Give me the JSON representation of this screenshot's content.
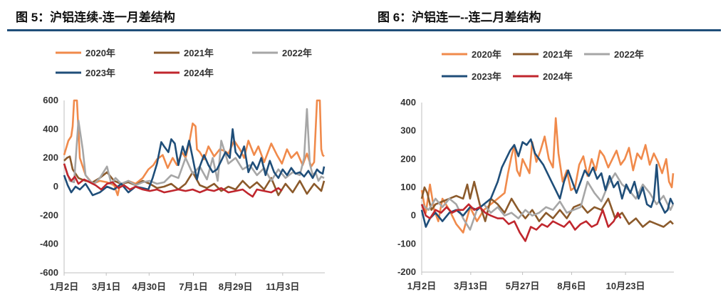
{
  "titles": {
    "fig5": "图 5：沪铝连续-连一月差结构",
    "fig6": "图 6：沪铝连一--连二月差结构"
  },
  "chart_data": [
    {
      "type": "line",
      "title": "图 5：沪铝连续-连一月差结构",
      "ylim": [
        -600,
        600
      ],
      "yticks": [
        600,
        400,
        200,
        0,
        -200,
        -400,
        -600
      ],
      "xticks": [
        "1月2日",
        "3月1日",
        "4月30日",
        "7月1日",
        "8月29日",
        "11月3日"
      ],
      "xtick_days": [
        0,
        59,
        119,
        181,
        240,
        306
      ],
      "xlim_days": [
        0,
        365
      ],
      "series": [
        {
          "name": "2020年",
          "color": "#f08a4b",
          "x": [
            0,
            6,
            10,
            12,
            14,
            18,
            22,
            30,
            40,
            50,
            60,
            70,
            75,
            78,
            82,
            90,
            100,
            110,
            118,
            125,
            130,
            138,
            145,
            152,
            158,
            165,
            170,
            175,
            180,
            184,
            186,
            190,
            196,
            202,
            210,
            218,
            224,
            230,
            238,
            246,
            252,
            258,
            266,
            272,
            280,
            290,
            298,
            305,
            312,
            318,
            326,
            334,
            340,
            346,
            350,
            354,
            358,
            360,
            362,
            364
          ],
          "values": [
            220,
            320,
            350,
            420,
            600,
            600,
            200,
            80,
            20,
            40,
            30,
            10,
            -60,
            10,
            20,
            40,
            20,
            60,
            120,
            150,
            190,
            220,
            130,
            200,
            150,
            240,
            200,
            300,
            440,
            420,
            260,
            240,
            190,
            280,
            210,
            260,
            250,
            230,
            320,
            260,
            200,
            320,
            220,
            280,
            170,
            300,
            220,
            160,
            260,
            200,
            240,
            150,
            230,
            140,
            170,
            600,
            600,
            260,
            220,
            210
          ]
        },
        {
          "name": "2021年",
          "color": "#8b5a2b",
          "x": [
            0,
            4,
            8,
            12,
            20,
            30,
            40,
            50,
            60,
            70,
            80,
            90,
            100,
            110,
            120,
            130,
            140,
            150,
            160,
            170,
            180,
            190,
            200,
            210,
            220,
            230,
            240,
            250,
            260,
            270,
            280,
            290,
            300,
            310,
            320,
            330,
            340,
            350,
            360,
            364
          ],
          "values": [
            180,
            200,
            210,
            120,
            60,
            40,
            30,
            60,
            100,
            40,
            20,
            30,
            10,
            40,
            20,
            -10,
            0,
            20,
            -20,
            20,
            100,
            10,
            -10,
            20,
            -30,
            0,
            -20,
            40,
            -10,
            30,
            -20,
            60,
            -60,
            20,
            -40,
            40,
            -50,
            20,
            -30,
            40
          ]
        },
        {
          "name": "2022年",
          "color": "#a6a6a6",
          "x": [
            0,
            8,
            14,
            20,
            26,
            30,
            36,
            42,
            50,
            60,
            66,
            72,
            80,
            90,
            100,
            110,
            120,
            130,
            140,
            150,
            160,
            170,
            180,
            190,
            200,
            208,
            215,
            220,
            230,
            240,
            250,
            260,
            270,
            280,
            290,
            300,
            310,
            320,
            330,
            336,
            340,
            344,
            348,
            352,
            356,
            360,
            364
          ],
          "values": [
            160,
            40,
            30,
            460,
            260,
            80,
            40,
            20,
            60,
            140,
            20,
            60,
            20,
            40,
            10,
            30,
            40,
            20,
            30,
            80,
            60,
            200,
            90,
            140,
            50,
            200,
            40,
            320,
            160,
            200,
            120,
            150,
            80,
            130,
            40,
            120,
            60,
            100,
            80,
            200,
            540,
            160,
            80,
            100,
            40,
            70,
            60
          ]
        },
        {
          "name": "2023年",
          "color": "#1f4e79",
          "x": [
            0,
            5,
            10,
            16,
            22,
            30,
            40,
            50,
            60,
            70,
            80,
            90,
            100,
            110,
            118,
            124,
            130,
            136,
            140,
            146,
            150,
            155,
            160,
            166,
            170,
            175,
            180,
            186,
            190,
            196,
            202,
            208,
            214,
            220,
            226,
            232,
            236,
            240,
            246,
            252,
            258,
            264,
            270,
            276,
            282,
            288,
            294,
            300,
            306,
            312,
            318,
            324,
            330,
            336,
            342,
            348,
            354,
            358,
            362,
            364
          ],
          "values": [
            80,
            10,
            -40,
            0,
            -20,
            20,
            -60,
            -40,
            0,
            -20,
            20,
            -40,
            0,
            -10,
            -20,
            60,
            160,
            310,
            280,
            240,
            330,
            300,
            150,
            280,
            220,
            320,
            200,
            50,
            140,
            220,
            150,
            100,
            120,
            180,
            240,
            200,
            400,
            240,
            200,
            280,
            100,
            170,
            120,
            200,
            80,
            180,
            100,
            60,
            120,
            80,
            130,
            90,
            100,
            70,
            110,
            60,
            120,
            100,
            90,
            140
          ]
        },
        {
          "name": "2024年",
          "color": "#c0262d",
          "x": [
            0,
            5,
            10,
            15,
            20,
            28,
            36,
            44,
            52,
            60,
            68,
            76,
            84,
            92,
            100,
            110,
            120,
            130,
            140,
            150,
            160,
            170,
            180,
            190,
            200,
            210,
            220,
            230,
            240,
            250,
            258,
            264,
            270,
            280,
            290,
            300,
            305
          ],
          "values": [
            160,
            80,
            40,
            70,
            20,
            50,
            30,
            10,
            -20,
            20,
            30,
            -10,
            10,
            -20,
            0,
            -20,
            -30,
            -20,
            -40,
            -30,
            -20,
            -30,
            -20,
            -40,
            -20,
            -30,
            -10,
            -40,
            -30,
            -20,
            -50,
            -70,
            -20,
            -30,
            -40,
            -10,
            -30
          ]
        }
      ]
    },
    {
      "type": "line",
      "title": "图 6：沪铝连一--连二月差结构",
      "ylim": [
        -200,
        400
      ],
      "yticks": [
        400,
        300,
        200,
        100,
        0,
        -100,
        -200
      ],
      "xticks": [
        "1月2日",
        "3月13日",
        "5月27日",
        "8月6日",
        "10月23日"
      ],
      "xtick_days": [
        0,
        71,
        146,
        217,
        295
      ],
      "xlim_days": [
        0,
        365
      ],
      "series": [
        {
          "name": "2020年",
          "color": "#f08a4b",
          "x": [
            0,
            6,
            12,
            18,
            24,
            30,
            40,
            50,
            60,
            70,
            80,
            90,
            100,
            110,
            120,
            125,
            130,
            134,
            138,
            142,
            146,
            150,
            156,
            160,
            166,
            172,
            178,
            184,
            190,
            194,
            198,
            204,
            210,
            216,
            222,
            228,
            234,
            240,
            246,
            252,
            258,
            264,
            270,
            276,
            282,
            288,
            294,
            300,
            306,
            312,
            318,
            324,
            330,
            336,
            342,
            348,
            354,
            358,
            362,
            364
          ],
          "values": [
            90,
            10,
            110,
            20,
            -20,
            60,
            20,
            -30,
            -60,
            30,
            -20,
            20,
            40,
            60,
            80,
            150,
            210,
            250,
            160,
            140,
            200,
            180,
            150,
            260,
            190,
            230,
            280,
            200,
            170,
            345,
            220,
            120,
            160,
            90,
            100,
            180,
            210,
            140,
            200,
            160,
            230,
            210,
            170,
            200,
            230,
            180,
            200,
            240,
            160,
            220,
            200,
            250,
            180,
            220,
            190,
            150,
            200,
            120,
            100,
            150
          ]
        },
        {
          "name": "2021年",
          "color": "#8b5a2b",
          "x": [
            0,
            4,
            8,
            14,
            20,
            30,
            40,
            50,
            60,
            66,
            70,
            76,
            84,
            92,
            100,
            110,
            120,
            130,
            140,
            150,
            160,
            170,
            180,
            190,
            200,
            210,
            220,
            230,
            240,
            250,
            260,
            270,
            280,
            290,
            300,
            310,
            320,
            330,
            340,
            350,
            360,
            364
          ],
          "values": [
            60,
            100,
            80,
            20,
            40,
            50,
            60,
            70,
            60,
            110,
            60,
            120,
            40,
            -20,
            60,
            40,
            10,
            60,
            20,
            -10,
            20,
            -20,
            10,
            -10,
            20,
            -10,
            30,
            40,
            10,
            30,
            20,
            60,
            -10,
            10,
            -30,
            -10,
            -40,
            -20,
            -30,
            -40,
            -20,
            -30
          ]
        },
        {
          "name": "2022年",
          "color": "#a6a6a6",
          "x": [
            0,
            10,
            20,
            30,
            40,
            50,
            60,
            70,
            80,
            90,
            100,
            110,
            120,
            130,
            140,
            150,
            160,
            170,
            180,
            190,
            200,
            210,
            220,
            230,
            240,
            250,
            260,
            270,
            280,
            290,
            300,
            310,
            320,
            330,
            340,
            350,
            360,
            364
          ],
          "values": [
            40,
            20,
            60,
            30,
            60,
            40,
            -10,
            -50,
            20,
            40,
            10,
            30,
            0,
            10,
            -10,
            20,
            0,
            10,
            30,
            20,
            50,
            10,
            20,
            30,
            120,
            80,
            50,
            110,
            150,
            110,
            90,
            60,
            110,
            80,
            40,
            70,
            20,
            40
          ]
        },
        {
          "name": "2023年",
          "color": "#1f4e79",
          "x": [
            0,
            6,
            12,
            20,
            30,
            40,
            50,
            60,
            70,
            80,
            90,
            100,
            110,
            116,
            122,
            128,
            134,
            140,
            146,
            152,
            158,
            164,
            170,
            176,
            182,
            188,
            194,
            200,
            206,
            212,
            218,
            224,
            230,
            236,
            242,
            248,
            254,
            260,
            266,
            272,
            278,
            284,
            290,
            296,
            302,
            308,
            314,
            320,
            326,
            332,
            336,
            340,
            344,
            348,
            352,
            356,
            360,
            364
          ],
          "values": [
            20,
            -40,
            -10,
            10,
            -20,
            10,
            20,
            0,
            30,
            20,
            40,
            60,
            120,
            170,
            200,
            230,
            250,
            210,
            260,
            250,
            270,
            220,
            200,
            180,
            150,
            120,
            90,
            60,
            120,
            160,
            120,
            80,
            120,
            160,
            140,
            170,
            130,
            150,
            90,
            140,
            100,
            120,
            60,
            110,
            80,
            120,
            60,
            100,
            40,
            30,
            60,
            180,
            50,
            30,
            10,
            20,
            60,
            40
          ]
        },
        {
          "name": "2024年",
          "color": "#c0262d",
          "x": [
            0,
            6,
            12,
            20,
            28,
            36,
            44,
            52,
            60,
            68,
            76,
            84,
            92,
            100,
            110,
            118,
            126,
            134,
            142,
            150,
            158,
            166,
            174,
            182,
            190,
            198,
            206,
            214,
            222,
            230,
            238,
            246,
            254,
            262,
            270,
            278,
            284,
            288
          ],
          "values": [
            40,
            0,
            -10,
            20,
            10,
            30,
            10,
            20,
            20,
            40,
            20,
            30,
            10,
            0,
            -10,
            -10,
            -30,
            -20,
            -60,
            -90,
            -40,
            -50,
            -30,
            -40,
            -20,
            -30,
            -40,
            -20,
            -50,
            -30,
            -20,
            -40,
            -30,
            20,
            -40,
            -20,
            10,
            -10
          ]
        }
      ]
    }
  ]
}
